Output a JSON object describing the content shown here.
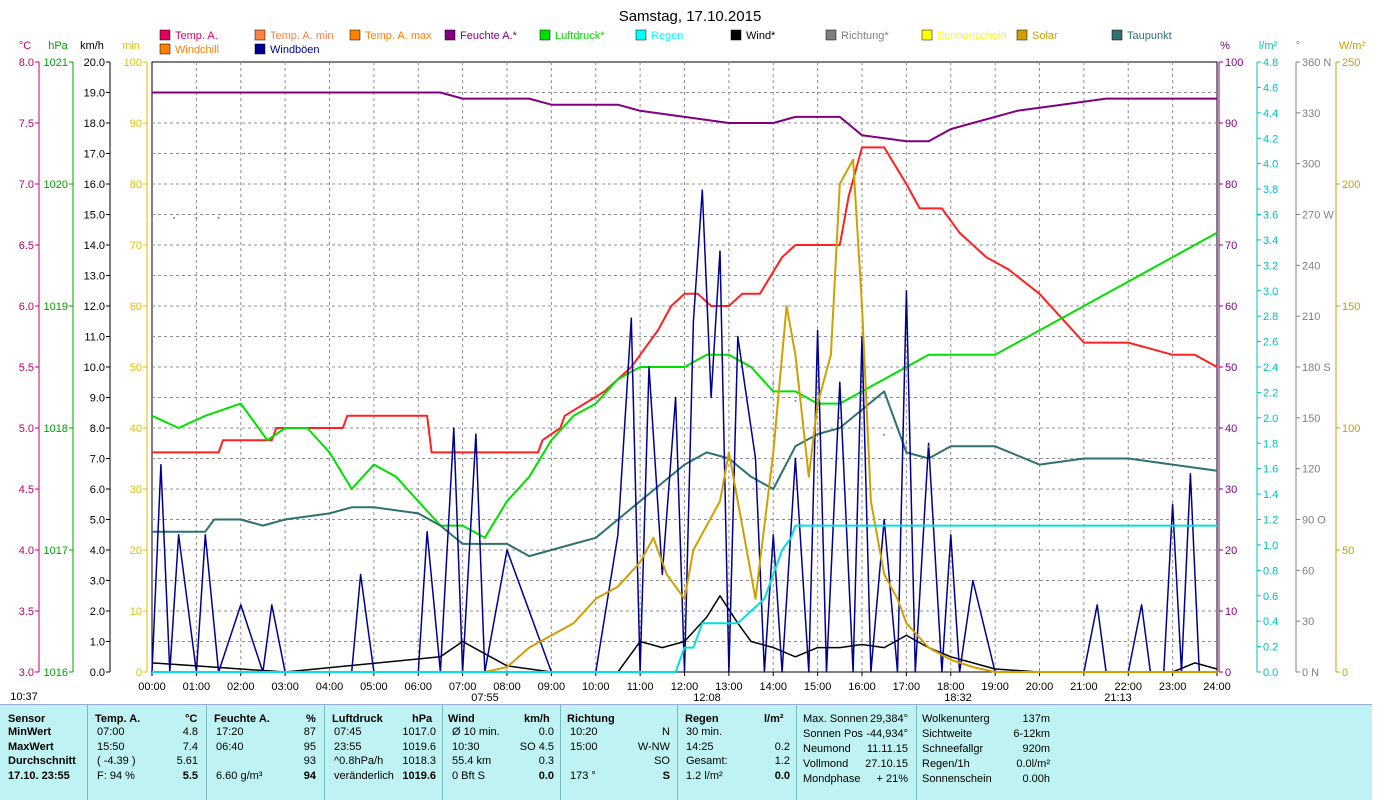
{
  "chart_data": {
    "type": "line",
    "title": "Samstag, 17.10.2015",
    "x_ticks": [
      "00:00",
      "01:00",
      "02:00",
      "03:00",
      "04:00",
      "05:00",
      "06:00",
      "07:00",
      "08:00",
      "09:00",
      "10:00",
      "11:00",
      "12:00",
      "13:00",
      "14:00",
      "15:00",
      "16:00",
      "17:00",
      "18:00",
      "19:00",
      "20:00",
      "21:00",
      "22:00",
      "23:00",
      "24:00"
    ],
    "x_markers": [
      "10:37",
      "07:55",
      "12:08",
      "18:32",
      "21:13"
    ],
    "left_axes": [
      {
        "unit": "°C",
        "color": "#c0006a",
        "ticks": [
          "8.0",
          "7.5",
          "7.0",
          "6.5",
          "6.0",
          "5.5",
          "5.0",
          "4.5",
          "4.0",
          "3.5",
          "3.0"
        ],
        "range": [
          3.0,
          8.0
        ]
      },
      {
        "unit": "hPa",
        "color": "#00a000",
        "ticks": [
          "1021",
          "1020",
          "1019",
          "1018",
          "1017",
          "1016"
        ],
        "range": [
          1016,
          1021
        ]
      },
      {
        "unit": "km/h",
        "color": "#000000",
        "ticks": [
          "20.0",
          "19.0",
          "18.0",
          "17.0",
          "16.0",
          "15.0",
          "14.0",
          "13.0",
          "12.0",
          "11.0",
          "10.0",
          "9.0",
          "8.0",
          "7.0",
          "6.0",
          "5.0",
          "4.0",
          "3.0",
          "2.0",
          "1.0",
          "0.0"
        ],
        "range": [
          0,
          20
        ]
      },
      {
        "unit": "min",
        "color": "#e0c000",
        "ticks": [
          "100",
          "90",
          "80",
          "70",
          "60",
          "50",
          "40",
          "30",
          "20",
          "10",
          "0"
        ],
        "range": [
          0,
          100
        ]
      }
    ],
    "right_axes": [
      {
        "unit": "%",
        "color": "#800080",
        "ticks": [
          "100",
          "90",
          "80",
          "70",
          "60",
          "50",
          "40",
          "30",
          "20",
          "10",
          "0"
        ],
        "range": [
          0,
          100
        ]
      },
      {
        "unit": "l/m²",
        "color": "#00c0c0",
        "ticks": [
          "4.8",
          "4.6",
          "4.4",
          "4.2",
          "4.0",
          "3.8",
          "3.6",
          "3.4",
          "3.2",
          "3.0",
          "2.8",
          "2.6",
          "2.4",
          "2.2",
          "2.0",
          "1.8",
          "1.6",
          "1.4",
          "1.2",
          "1.0",
          "0.8",
          "0.6",
          "0.4",
          "0.2",
          "0.0"
        ],
        "range": [
          0,
          5.0
        ]
      },
      {
        "unit": "°",
        "color": "#808080",
        "ticks": [
          "360 N",
          "330",
          "300",
          "270 W",
          "240",
          "210",
          "180 S",
          "150",
          "120",
          "90  O",
          "60",
          "30",
          "0  N"
        ],
        "range": [
          0,
          360
        ]
      },
      {
        "unit": "W/m²",
        "color": "#c8a000",
        "ticks": [
          "250",
          "200",
          "150",
          "100",
          "50",
          "0"
        ],
        "range": [
          0,
          250
        ]
      }
    ],
    "legend": [
      {
        "name": "Temp. A.",
        "color": "#e00060"
      },
      {
        "name": "Temp. A. min",
        "color": "#ff8040"
      },
      {
        "name": "Temp. A. max",
        "color": "#ff8000"
      },
      {
        "name": "Feuchte A.*",
        "color": "#800080"
      },
      {
        "name": "Luftdruck*",
        "color": "#00e000"
      },
      {
        "name": "Regen",
        "color": "#00ffff"
      },
      {
        "name": "Wind*",
        "color": "#000000"
      },
      {
        "name": "Richtung*",
        "color": "#808080"
      },
      {
        "name": "Sonnenschein",
        "color": "#ffff00"
      },
      {
        "name": "Solar",
        "color": "#d0a000"
      },
      {
        "name": "Taupunkt",
        "color": "#307070"
      },
      {
        "name": "Windchill",
        "color": "#ff8000"
      },
      {
        "name": "Windböen",
        "color": "#000090"
      }
    ],
    "series": [
      {
        "name": "Temp. A.",
        "unit": "°C",
        "color": "#ff2020",
        "x": [
          0,
          1.5,
          1.6,
          2.7,
          2.8,
          4.3,
          4.4,
          6.2,
          6.3,
          8.7,
          8.8,
          9.2,
          9.3,
          10.2,
          10.8,
          11.4,
          11.7,
          12.0,
          12.3,
          12.6,
          13.0,
          13.3,
          13.7,
          14.2,
          14.5,
          15.5,
          15.7,
          16.0,
          16.5,
          17.0,
          17.3,
          17.8,
          18.2,
          18.8,
          19.3,
          20.0,
          20.5,
          21.0,
          22.0,
          23.0,
          23.5,
          24.0
        ],
        "y": [
          4.8,
          4.8,
          4.9,
          4.9,
          5.0,
          5.0,
          5.1,
          5.1,
          4.8,
          4.8,
          4.9,
          5.0,
          5.1,
          5.3,
          5.5,
          5.8,
          6.0,
          6.1,
          6.1,
          6.0,
          6.0,
          6.1,
          6.1,
          6.4,
          6.5,
          6.5,
          6.9,
          7.3,
          7.3,
          7.0,
          6.8,
          6.8,
          6.6,
          6.4,
          6.3,
          6.1,
          5.9,
          5.7,
          5.7,
          5.6,
          5.6,
          5.5
        ]
      },
      {
        "name": "Feuchte A.*",
        "unit": "%",
        "color": "#800080",
        "x": [
          0,
          6.5,
          7.0,
          8.5,
          9.0,
          10.5,
          11.0,
          13.0,
          14.0,
          14.5,
          15.5,
          16.0,
          17.0,
          17.5,
          18.0,
          18.5,
          19.5,
          20.5,
          21.5,
          22.5,
          23.5,
          24.0
        ],
        "y": [
          95,
          95,
          94,
          94,
          93,
          93,
          92,
          90,
          90,
          91,
          91,
          88,
          87,
          87,
          89,
          90,
          92,
          93,
          94,
          94,
          94,
          94
        ]
      },
      {
        "name": "Luftdruck*",
        "unit": "hPa",
        "color": "#00e000",
        "x": [
          0,
          0.6,
          1.2,
          2.0,
          2.6,
          3.0,
          3.5,
          4.0,
          4.5,
          5.0,
          5.5,
          6.0,
          6.5,
          7.0,
          7.5,
          8.0,
          8.5,
          9.0,
          9.5,
          10.0,
          10.5,
          11.0,
          12.0,
          12.5,
          13.0,
          13.5,
          14.0,
          14.5,
          15.0,
          15.5,
          16.0,
          16.5,
          17.0,
          17.5,
          18.0,
          18.5,
          19.0,
          19.5,
          20.0,
          20.5,
          21.0,
          21.5,
          22.0,
          22.5,
          23.0,
          23.5,
          24.0
        ],
        "y": [
          1018.1,
          1018.0,
          1018.1,
          1018.2,
          1017.9,
          1018.0,
          1018.0,
          1017.8,
          1017.5,
          1017.7,
          1017.6,
          1017.4,
          1017.2,
          1017.2,
          1017.1,
          1017.4,
          1017.6,
          1017.9,
          1018.1,
          1018.2,
          1018.4,
          1018.5,
          1018.5,
          1018.6,
          1018.6,
          1018.5,
          1018.3,
          1018.3,
          1018.2,
          1018.2,
          1018.3,
          1018.4,
          1018.5,
          1018.6,
          1018.6,
          1018.6,
          1018.6,
          1018.7,
          1018.8,
          1018.9,
          1019.0,
          1019.1,
          1019.2,
          1019.3,
          1019.4,
          1019.5,
          1019.6
        ]
      },
      {
        "name": "Taupunkt",
        "unit": "°C",
        "color": "#307070",
        "x": [
          0,
          1.2,
          1.4,
          2.0,
          2.5,
          3.0,
          4.0,
          4.5,
          5.0,
          6.0,
          6.5,
          7.0,
          8.0,
          8.5,
          9.0,
          9.5,
          10.0,
          10.5,
          11.0,
          11.5,
          12.0,
          12.5,
          13.0,
          13.5,
          14.0,
          14.5,
          15.0,
          15.5,
          16.0,
          16.5,
          17.0,
          17.5,
          18.0,
          19.0,
          20.0,
          21.0,
          22.0,
          23.0,
          24.0
        ],
        "y": [
          4.15,
          4.15,
          4.25,
          4.25,
          4.2,
          4.25,
          4.3,
          4.35,
          4.35,
          4.3,
          4.2,
          4.05,
          4.05,
          3.95,
          4.0,
          4.05,
          4.1,
          4.25,
          4.4,
          4.55,
          4.7,
          4.8,
          4.75,
          4.6,
          4.5,
          4.85,
          4.95,
          5.0,
          5.15,
          5.3,
          4.8,
          4.75,
          4.85,
          4.85,
          4.7,
          4.75,
          4.75,
          4.7,
          4.65
        ]
      },
      {
        "name": "Wind*",
        "unit": "km/h",
        "color": "#000000",
        "x": [
          0,
          1.0,
          2.0,
          3.0,
          6.5,
          7.0,
          7.5,
          8.0,
          9.0,
          10.5,
          11.0,
          11.5,
          12.0,
          12.5,
          12.8,
          13.2,
          13.5,
          14.0,
          14.5,
          15.0,
          15.5,
          16.0,
          16.5,
          17.0,
          17.5,
          18.0,
          18.5,
          19.0,
          20.0,
          23.0,
          23.5,
          24.0
        ],
        "y": [
          0.3,
          0.2,
          0.1,
          0.0,
          0.5,
          1.0,
          0.6,
          0.2,
          0.0,
          0.0,
          1.0,
          0.8,
          1.0,
          1.8,
          2.5,
          1.6,
          1.0,
          0.8,
          0.5,
          0.8,
          0.8,
          0.9,
          0.8,
          1.2,
          0.8,
          0.5,
          0.3,
          0.1,
          0.0,
          0.0,
          0.3,
          0.1
        ]
      },
      {
        "name": "Windböen",
        "unit": "km/h",
        "color": "#000090",
        "x": [
          0,
          0.2,
          0.4,
          0.6,
          1.0,
          1.2,
          1.5,
          2.0,
          2.5,
          2.7,
          3.0,
          4.0,
          4.5,
          4.7,
          5.0,
          6.0,
          6.2,
          6.5,
          6.8,
          7.0,
          7.3,
          7.5,
          8.0,
          9.0,
          10.0,
          10.5,
          10.8,
          11.0,
          11.2,
          11.5,
          11.8,
          12.0,
          12.2,
          12.4,
          12.6,
          12.8,
          13.0,
          13.2,
          13.4,
          13.6,
          13.8,
          14.0,
          14.2,
          14.5,
          14.8,
          15.0,
          15.2,
          15.5,
          15.8,
          16.0,
          16.2,
          16.5,
          16.8,
          17.0,
          17.2,
          17.5,
          17.8,
          18.0,
          18.2,
          18.5,
          19.0,
          21.0,
          21.3,
          21.5,
          22.0,
          22.3,
          22.5,
          22.8,
          23.0,
          23.2,
          23.4,
          23.6,
          24.0
        ],
        "y": [
          0,
          6.8,
          0,
          4.5,
          0,
          4.5,
          0,
          2.2,
          0,
          2.2,
          0,
          0,
          0,
          3.2,
          0,
          0,
          4.6,
          0,
          8.0,
          0,
          7.8,
          0,
          4.0,
          0,
          0,
          4.5,
          11.6,
          0,
          10.0,
          3.2,
          9.0,
          0,
          11.5,
          15.8,
          9.0,
          13.8,
          0,
          11.0,
          9.0,
          7.0,
          0,
          4.5,
          0,
          7.0,
          0,
          11.2,
          0,
          9.5,
          0,
          11.0,
          0,
          5.0,
          0,
          12.5,
          0,
          7.5,
          0,
          4.5,
          0,
          3.0,
          0,
          0,
          2.2,
          0,
          0,
          2.2,
          0,
          0,
          5.5,
          0,
          6.5,
          0,
          0
        ]
      },
      {
        "name": "Solar",
        "unit": "W/m²",
        "color": "#d0a000",
        "x": [
          0,
          7.5,
          8.0,
          8.5,
          9.0,
          9.5,
          10.0,
          10.5,
          11.0,
          11.3,
          11.6,
          12.0,
          12.2,
          12.5,
          12.8,
          13.0,
          13.3,
          13.6,
          14.0,
          14.3,
          14.5,
          14.8,
          15.0,
          15.3,
          15.5,
          15.8,
          16.0,
          16.2,
          16.5,
          16.8,
          17.0,
          17.5,
          18.0,
          18.5,
          19.0,
          24.0
        ],
        "y": [
          0,
          0,
          2,
          10,
          15,
          20,
          30,
          35,
          45,
          55,
          40,
          30,
          50,
          60,
          70,
          90,
          60,
          30,
          90,
          150,
          130,
          80,
          110,
          130,
          200,
          210,
          150,
          70,
          40,
          30,
          20,
          10,
          5,
          2,
          0,
          0
        ]
      },
      {
        "name": "Regen",
        "unit": "l/m²",
        "color": "#00e0e0",
        "x": [
          0,
          11.8,
          12.0,
          12.2,
          12.4,
          13.2,
          13.8,
          14.2,
          14.4,
          14.5,
          15.0,
          24.0
        ],
        "y": [
          0,
          0,
          0.2,
          0.2,
          0.4,
          0.4,
          0.6,
          1.0,
          1.1,
          1.2,
          1.2,
          1.2
        ]
      },
      {
        "name": "Richtung*",
        "unit": "°",
        "color": "#808080",
        "x": [
          0,
          0.5,
          1.0,
          1.5,
          13.0,
          13.5,
          14.0,
          14.5,
          15.0,
          15.5,
          16.0,
          16.5,
          17.0,
          17.5
        ],
        "y": [
          267,
          268,
          268,
          268,
          190,
          180,
          170,
          160,
          155,
          150,
          160,
          140,
          135,
          133
        ]
      }
    ]
  },
  "panel": {
    "headers": {
      "sensor": "Sensor",
      "temp": "Temp. A.",
      "temp_unit": "°C",
      "feuchte": "Feuchte A.",
      "feuchte_unit": "%",
      "luft": "Luftdruck",
      "luft_unit": "hPa",
      "wind": "Wind",
      "wind_unit": "km/h",
      "richtung": "Richtung",
      "regen": "Regen",
      "regen_unit": "l/m²"
    },
    "rows": [
      {
        "sensor": "MinWert",
        "t_time": "07:00",
        "t_val": "4.8",
        "f_time": "17:20",
        "f_val": "87",
        "l_time": "07:45",
        "l_val": "1017.0",
        "w_lbl": "Ø 10 min.",
        "w_val": "0.0",
        "r_time": "10:20",
        "r_dir": "N",
        "rg_lbl": "30 min.",
        "rg_val": ""
      },
      {
        "sensor": "MaxWert",
        "t_time": "15:50",
        "t_val": "7.4",
        "f_time": "06:40",
        "f_val": "95",
        "l_time": "23:55",
        "l_val": "1019.6",
        "w_lbl": "10:30",
        "w_val": "SO 4.5",
        "r_time": "15:00",
        "r_dir": "W-NW",
        "rg_lbl": "14:25",
        "rg_val": "0.2"
      },
      {
        "sensor": "Durchschnitt",
        "t_time": "( -4.39 )",
        "t_val": "5.61",
        "f_time": "",
        "f_val": "93",
        "l_time": "^0.8hPa/h",
        "l_val": "1018.3",
        "w_lbl": "55.4 km",
        "w_val": "0.3",
        "r_time": "",
        "r_dir": "SO",
        "rg_lbl": "Gesamt:",
        "rg_val": "1.2"
      },
      {
        "sensor": "17.10. 23:55",
        "t_time": "F: 94 %",
        "t_val": "5.5",
        "f_time": "6.60 g/m³",
        "f_val": "94",
        "l_time": "veränderlich",
        "l_val": "1019.6",
        "w_lbl": "0 Bft S",
        "w_val": "0.0",
        "r_time": "173 °",
        "r_dir": "S",
        "rg_lbl": "1.2 l/m²",
        "rg_val": "0.0"
      }
    ],
    "astro": [
      {
        "label": "Max. Sonnen",
        "value": "29,384°"
      },
      {
        "label": "Sonnen Pos",
        "value": "-44,934°"
      },
      {
        "label": "Neumond",
        "value": "11.11.15"
      },
      {
        "label": "Vollmond",
        "value": "27.10.15"
      },
      {
        "label": "Mondphase",
        "value": "+ 21%"
      }
    ],
    "misc": [
      {
        "label": "Wolkenunterg",
        "value": "137m"
      },
      {
        "label": "Sichtweite",
        "value": "6-12km"
      },
      {
        "label": "Schneefallgr",
        "value": "920m"
      },
      {
        "label": "Regen/1h",
        "value": "0.0l/m²"
      },
      {
        "label": "Sonnenschein",
        "value": "0.00h"
      }
    ]
  }
}
